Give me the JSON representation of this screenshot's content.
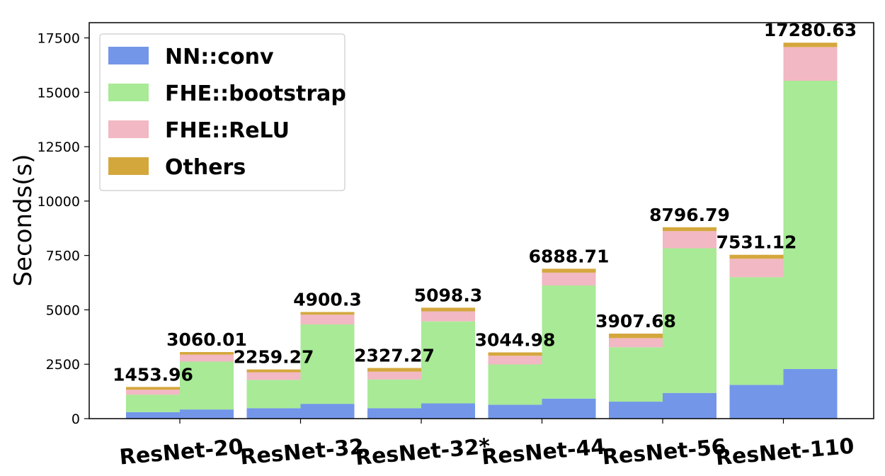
{
  "chart_data": {
    "type": "bar",
    "stacked": true,
    "title": "",
    "xlabel": "",
    "ylabel": "Seconds(s)",
    "ylim": [
      0,
      18200
    ],
    "yticks": [
      0,
      2500,
      5000,
      7500,
      10000,
      12500,
      15000,
      17500
    ],
    "ytick_labels": [
      "0",
      "2500",
      "5000",
      "7500",
      "10000",
      "12500",
      "15000",
      "17500"
    ],
    "categories": [
      "ResNet-20",
      "ResNet-32",
      "ResNet-32*",
      "ResNet-44",
      "ResNet-56",
      "ResNet-110"
    ],
    "legend_position": "top-left",
    "grid": false,
    "series": [
      {
        "name": "NN::conv",
        "color": "#7396e8",
        "values": [
          [
            300,
            420
          ],
          [
            480,
            680
          ],
          [
            480,
            700
          ],
          [
            640,
            920
          ],
          [
            780,
            1180
          ],
          [
            1550,
            2280
          ]
        ]
      },
      {
        "name": "FHE::bootstrap",
        "color": "#a8ea96",
        "values": [
          [
            800,
            2200
          ],
          [
            1300,
            3650
          ],
          [
            1320,
            3770
          ],
          [
            1850,
            5200
          ],
          [
            2500,
            6650
          ],
          [
            4950,
            13250
          ]
        ]
      },
      {
        "name": "FHE::ReLU",
        "color": "#f2b8c3",
        "values": [
          [
            230,
            320
          ],
          [
            350,
            450
          ],
          [
            360,
            460
          ],
          [
            400,
            590
          ],
          [
            420,
            790
          ],
          [
            850,
            1550
          ]
        ]
      },
      {
        "name": "Others",
        "color": "#d4a73d",
        "values": [
          [
            123.96,
            120.01
          ],
          [
            129.27,
            120.3
          ],
          [
            167.27,
            168.3
          ],
          [
            154.98,
            178.71
          ],
          [
            207.68,
            176.79
          ],
          [
            181.12,
            200.63
          ]
        ]
      }
    ],
    "totals": [
      [
        1453.96,
        3060.01
      ],
      [
        2259.27,
        4900.3
      ],
      [
        2327.27,
        5098.3
      ],
      [
        3044.98,
        6888.71
      ],
      [
        3907.68,
        8796.79
      ],
      [
        7531.12,
        17280.63
      ]
    ],
    "total_labels": [
      [
        "1453.96",
        "3060.01"
      ],
      [
        "2259.27",
        "4900.3"
      ],
      [
        "2327.27",
        "5098.3"
      ],
      [
        "3044.98",
        "6888.71"
      ],
      [
        "3907.68",
        "8796.79"
      ],
      [
        "7531.12",
        "17280.63"
      ]
    ]
  }
}
